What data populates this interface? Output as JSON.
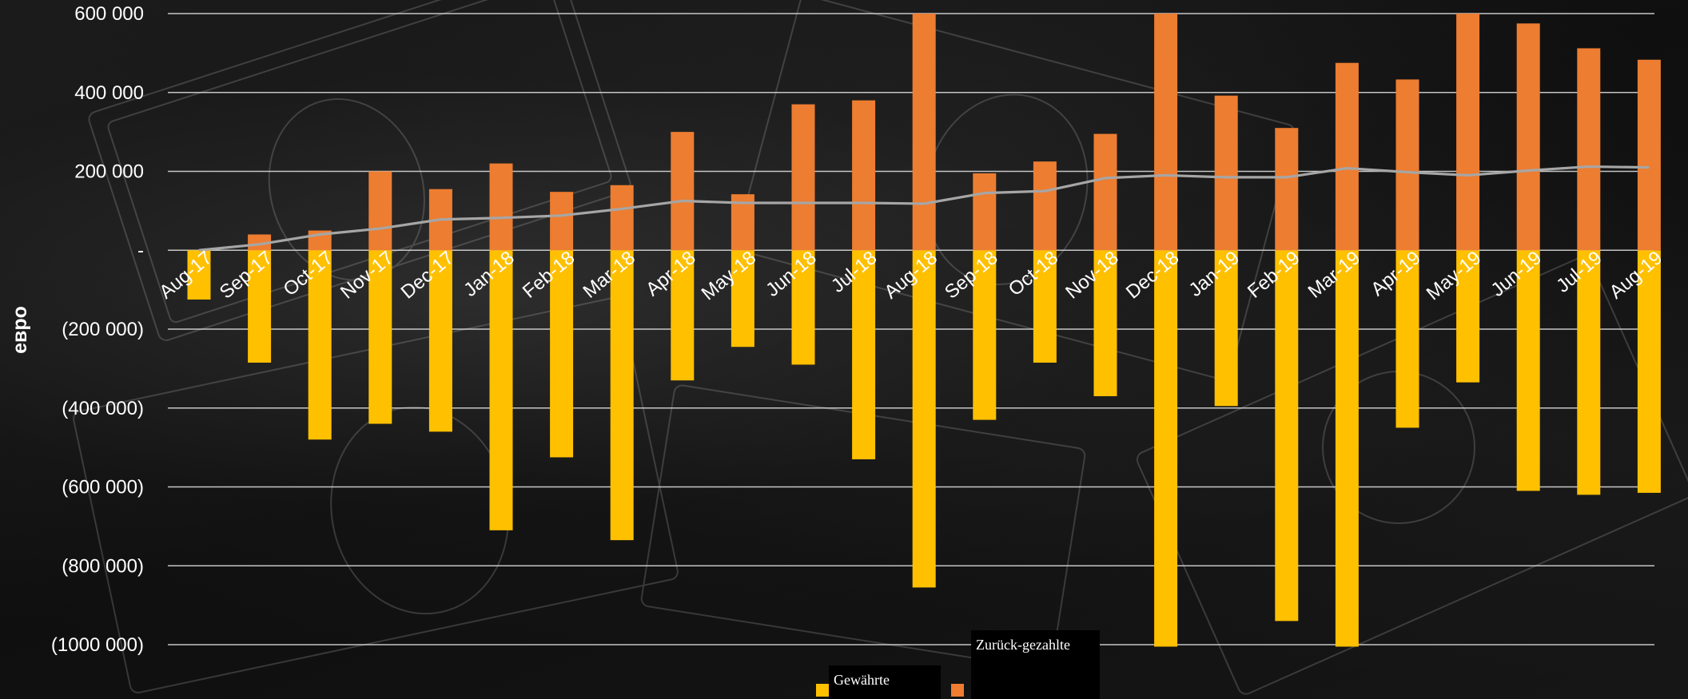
{
  "colors": {
    "granted": "#FFC000",
    "repaid": "#ED7D31",
    "line": "#A6A6A6",
    "gridline": "#D9D9D9"
  },
  "axis": {
    "ylabel": "евро",
    "yticks": [
      "600 000",
      "400 000",
      "200 000",
      "-",
      "(200 000)",
      "(400 000)",
      "(600 000)",
      "(800 000)",
      "(1000 000)"
    ]
  },
  "legend": {
    "granted_label": "Gewährte",
    "repaid_label": "Zurück-gezahlte"
  },
  "chart_data": {
    "type": "bar",
    "title": "",
    "xlabel": "",
    "ylabel": "евро",
    "ylim": [
      -1000000,
      600000
    ],
    "grid": true,
    "categories": [
      "Aug-17",
      "Sep-17",
      "Oct-17",
      "Nov-17",
      "Dec-17",
      "Jan-18",
      "Feb-18",
      "Mar-18",
      "Apr-18",
      "May-18",
      "Jun-18",
      "Jul-18",
      "Aug-18",
      "Sep-18",
      "Oct-18",
      "Nov-18",
      "Dec-18",
      "Jan-19",
      "Feb-19",
      "Mar-19",
      "Apr-19",
      "May-19",
      "Jun-19",
      "Jul-19",
      "Aug-19"
    ],
    "series": [
      {
        "name": "Gewährte",
        "kind": "bar",
        "values": [
          -125000,
          -285000,
          -480000,
          -440000,
          -460000,
          -710000,
          -525000,
          -735000,
          -330000,
          -245000,
          -290000,
          -530000,
          -855000,
          -430000,
          -285000,
          -370000,
          -1005000,
          -395000,
          -940000,
          -1005000,
          -450000,
          -335000,
          -610000,
          -620000,
          -615000
        ]
      },
      {
        "name": "Zurück-gezahlte",
        "kind": "bar",
        "values": [
          0,
          40000,
          50000,
          200000,
          155000,
          220000,
          148000,
          165000,
          300000,
          142000,
          370000,
          380000,
          600000,
          195000,
          225000,
          295000,
          600000,
          392000,
          310000,
          475000,
          433000,
          600000,
          575000,
          512000,
          483000
        ]
      },
      {
        "kind": "line",
        "values": [
          0,
          15000,
          40000,
          55000,
          78000,
          82000,
          88000,
          105000,
          125000,
          120000,
          120000,
          120000,
          118000,
          145000,
          150000,
          183000,
          190000,
          185000,
          185000,
          208000,
          198000,
          190000,
          202000,
          212000,
          210000
        ]
      }
    ]
  }
}
